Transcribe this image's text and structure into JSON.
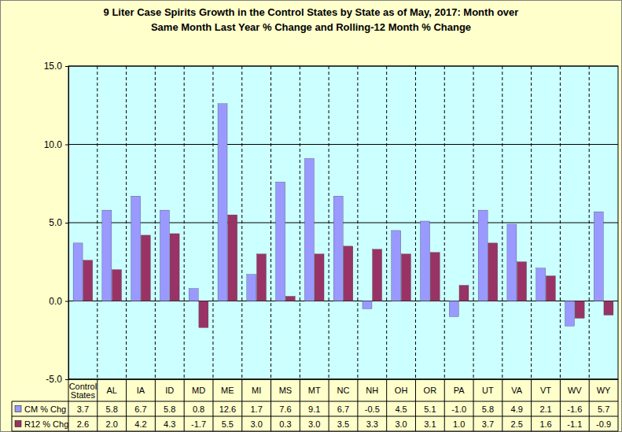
{
  "chart_data": {
    "type": "bar",
    "title": "9 Liter Case Spirits Growth in the Control States by State as of May, 2017: Month over Same Month Last Year % Change and Rolling-12 Month % Change",
    "categories": [
      "Control States",
      "AL",
      "IA",
      "ID",
      "MD",
      "ME",
      "MI",
      "MS",
      "MT",
      "NC",
      "NH",
      "OH",
      "OR",
      "PA",
      "UT",
      "VA",
      "VT",
      "WV",
      "WY"
    ],
    "series": [
      {
        "name": "CM % Chg",
        "color": "#9999ff",
        "values": [
          3.7,
          5.8,
          6.7,
          5.8,
          0.8,
          12.6,
          1.7,
          7.6,
          9.1,
          6.7,
          -0.5,
          4.5,
          5.1,
          -1.0,
          5.8,
          4.9,
          2.1,
          -1.6,
          5.7
        ],
        "value_labels": [
          "3.7",
          "5.8",
          "6.7",
          "5.8",
          "0.8",
          "12.6",
          "1.7",
          "7.6",
          "9.1",
          "6.7",
          "-0.5",
          "4.5",
          "5.1",
          "-1.0",
          "5.8",
          "4.9",
          "2.1",
          "-1.6",
          "5.7"
        ]
      },
      {
        "name": "R12 % Chg",
        "color": "#993366",
        "values": [
          2.6,
          2.0,
          4.2,
          4.3,
          -1.7,
          5.5,
          3.0,
          0.3,
          3.0,
          3.5,
          3.3,
          3.0,
          3.1,
          1.0,
          3.7,
          2.5,
          1.6,
          -1.1,
          -0.9
        ],
        "value_labels": [
          "2.6",
          "2.0",
          "4.2",
          "4.3",
          "-1.7",
          "5.5",
          "3.0",
          "0.3",
          "3.0",
          "3.5",
          "3.3",
          "3.0",
          "3.1",
          "1.0",
          "3.7",
          "2.5",
          "1.6",
          "-1.1",
          "-0.9"
        ]
      }
    ],
    "ylim": [
      -5,
      15
    ],
    "yticks": [
      {
        "value": -5,
        "label": "-5.0"
      },
      {
        "value": 0,
        "label": "0.0"
      },
      {
        "value": 5,
        "label": "5.0"
      },
      {
        "value": 10,
        "label": "10.0"
      },
      {
        "value": 15,
        "label": "15.0"
      }
    ],
    "grid": true,
    "data_labels": true
  }
}
